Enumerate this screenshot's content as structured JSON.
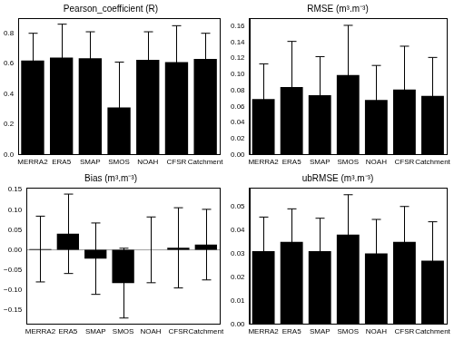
{
  "chart_data": [
    {
      "type": "bar",
      "title": "Pearson_coefficient (R)",
      "categories": [
        "MERRA2",
        "ERA5",
        "SMAP",
        "SMOS",
        "NOAH",
        "CFSR",
        "Catchment"
      ],
      "values": [
        0.62,
        0.64,
        0.635,
        0.31,
        0.625,
        0.61,
        0.63
      ],
      "errors": [
        0.18,
        0.22,
        0.175,
        0.3,
        0.185,
        0.24,
        0.17
      ],
      "color": "#000000",
      "ylim": [
        0,
        0.9
      ],
      "yticks": [
        {
          "value": 0,
          "label": "0.0"
        },
        0.2,
        0.4,
        0.6,
        0.8
      ],
      "grid": false
    },
    {
      "type": "bar",
      "title": "RMSE (m³.m⁻³)",
      "categories": [
        "MERRA2",
        "ERA5",
        "SMAP",
        "SMOS",
        "NOAH",
        "CFSR",
        "Catchment"
      ],
      "values": [
        0.069,
        0.084,
        0.074,
        0.099,
        0.068,
        0.081,
        0.073
      ],
      "errors": [
        0.044,
        0.057,
        0.048,
        0.062,
        0.043,
        0.054,
        0.048
      ],
      "color": "#000000",
      "ylim": [
        0,
        0.17
      ],
      "yticks": [
        {
          "value": 0,
          "label": "0.00"
        },
        {
          "value": 0.02,
          "label": "0.02"
        },
        {
          "value": 0.04,
          "label": "0.04"
        },
        {
          "value": 0.06,
          "label": "0.06"
        },
        {
          "value": 0.08,
          "label": "0.08"
        },
        {
          "value": 0.1,
          "label": "0.10"
        },
        {
          "value": 0.12,
          "label": "0.12"
        },
        {
          "value": 0.14,
          "label": "0.14"
        },
        {
          "value": 0.16,
          "label": "0.16"
        }
      ],
      "grid": false
    },
    {
      "type": "bar",
      "title": "Bias (m³.m⁻³)",
      "categories": [
        "MERRA2",
        "ERA5",
        "SMAP",
        "SMOS",
        "NOAH",
        "CFSR",
        "Catchment"
      ],
      "values": [
        0.002,
        0.04,
        -0.022,
        -0.083,
        0.0,
        0.005,
        0.013
      ],
      "errors": [
        0.082,
        0.099,
        0.089,
        0.087,
        0.082,
        0.1,
        0.088
      ],
      "color": "#000000",
      "ylim": [
        -0.185,
        0.155
      ],
      "yticks": [
        {
          "value": -0.15,
          "label": "−0.15"
        },
        {
          "value": -0.1,
          "label": "−0.10"
        },
        {
          "value": -0.05,
          "label": "−0.05"
        },
        {
          "value": 0,
          "label": "0.00"
        },
        0.05,
        {
          "value": 0.1,
          "label": "0.10"
        },
        0.15
      ],
      "grid": false
    },
    {
      "type": "bar",
      "title": "ubRMSE (m³.m⁻³)",
      "categories": [
        "MERRA2",
        "ERA5",
        "SMAP",
        "SMOS",
        "NOAH",
        "CFSR",
        "Catchment"
      ],
      "values": [
        0.031,
        0.035,
        0.031,
        0.038,
        0.03,
        0.035,
        0.027
      ],
      "errors": [
        0.0145,
        0.014,
        0.014,
        0.017,
        0.0145,
        0.015,
        0.0165
      ],
      "color": "#000000",
      "ylim": [
        0,
        0.058
      ],
      "yticks": [
        {
          "value": 0,
          "label": "0.00"
        },
        0.01,
        0.02,
        0.03,
        0.04,
        0.05
      ],
      "grid": false
    }
  ]
}
